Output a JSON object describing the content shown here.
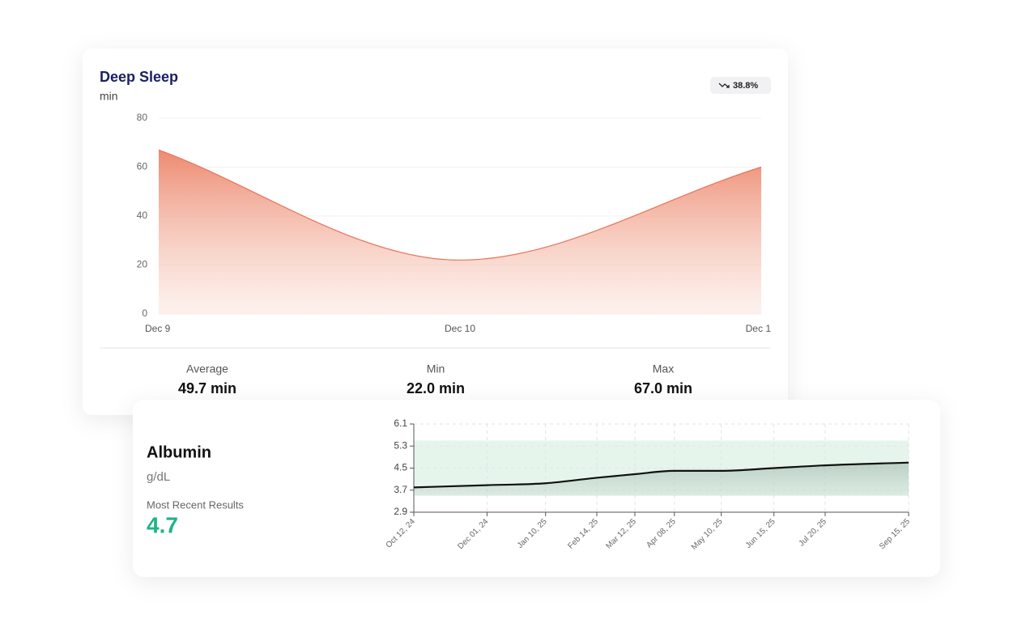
{
  "chart_data": [
    {
      "type": "area",
      "title": "Deep Sleep",
      "subtitle": "min",
      "badge": "38.8%",
      "categories": [
        "Dec 9",
        "Dec 10",
        "Dec 1"
      ],
      "series": [
        {
          "name": "Deep Sleep",
          "color": "#e8745a",
          "values": [
            67,
            22,
            60
          ]
        }
      ],
      "ylim": [
        0,
        80
      ],
      "yticks": [
        0,
        20,
        40,
        60,
        80
      ],
      "grid": true,
      "stats": [
        {
          "label": "Average",
          "value": "49.7 min"
        },
        {
          "label": "Min",
          "value": "22.0 min"
        },
        {
          "label": "Max",
          "value": "67.0 min"
        }
      ]
    },
    {
      "type": "line",
      "title": "Albumin",
      "subtitle": "g/dL",
      "annotation": "Most Recent Results",
      "x": [
        "2024-10-12",
        "2024-12-01",
        "2025-01-10",
        "2025-02-14",
        "2025-03-12",
        "2025-04-08",
        "2025-05-10",
        "2025-06-15",
        "2025-07-20",
        "2025-09-15"
      ],
      "series": [
        {
          "name": "Albumin",
          "color": "#111111",
          "values": [
            3.8,
            3.88,
            3.95,
            4.15,
            4.28,
            4.4,
            4.4,
            4.5,
            4.6,
            4.7
          ]
        }
      ],
      "reference_range": [
        3.5,
        5.5
      ],
      "reference_color": "#e6f5ec",
      "xticks": [
        {
          "value": "2024-10-12",
          "label": "Oct 12, 24"
        },
        {
          "value": "2024-12-01",
          "label": "Dec 01, 24"
        },
        {
          "value": "2025-01-10",
          "label": "Jan 10, 25"
        },
        {
          "value": "2025-02-14",
          "label": "Feb 14, 25"
        },
        {
          "value": "2025-03-12",
          "label": "Mar 12, 25"
        },
        {
          "value": "2025-04-08",
          "label": "Apr 08, 25"
        },
        {
          "value": "2025-05-10",
          "label": "May 10, 25"
        },
        {
          "value": "2025-06-15",
          "label": "Jun 15, 25"
        },
        {
          "value": "2025-07-20",
          "label": "Jul 20, 25"
        },
        {
          "value": "2025-09-15",
          "label": "Sep 15, 25"
        }
      ],
      "ylim": [
        2.9,
        6.1
      ],
      "yticks": [
        2.9,
        3.7,
        4.5,
        5.3,
        6.1
      ],
      "grid": true
    }
  ]
}
